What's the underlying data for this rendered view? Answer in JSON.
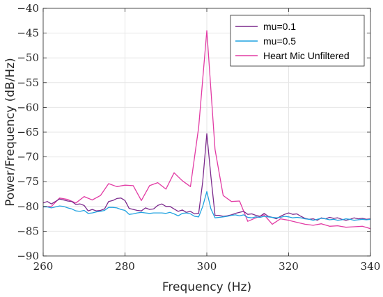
{
  "chart_data": {
    "type": "line",
    "title": "",
    "xlabel": "Frequency (Hz)",
    "ylabel": "Power/Frequency (dB/Hz)",
    "xlim": [
      260,
      340
    ],
    "ylim": [
      -90,
      -40
    ],
    "xticks": [
      260,
      280,
      300,
      320,
      340
    ],
    "xtick_labels": [
      "260",
      "280",
      "300",
      "320",
      "340"
    ],
    "yticks": [
      -40,
      -45,
      -50,
      -55,
      -60,
      -65,
      -70,
      -75,
      -80,
      -85,
      -90
    ],
    "ytick_labels": [
      "−40",
      "−45",
      "−50",
      "−55",
      "−60",
      "−65",
      "−70",
      "−75",
      "−80",
      "−85",
      "−90"
    ],
    "grid": true,
    "legend_position": "top-right",
    "series": [
      {
        "name": "mu=0.1",
        "color": "#7b2a8c",
        "x": [
          260,
          261,
          262,
          263,
          264,
          265,
          266,
          267,
          268,
          269,
          270,
          271,
          272,
          273,
          274,
          275,
          276,
          277,
          278,
          279,
          280,
          281,
          282,
          283,
          284,
          285,
          286,
          287,
          288,
          289,
          290,
          291,
          292,
          293,
          294,
          295,
          296,
          297,
          298,
          299,
          300,
          301,
          302,
          303,
          304,
          305,
          306,
          307,
          308,
          309,
          310,
          311,
          312,
          313,
          314,
          315,
          316,
          317,
          318,
          319,
          320,
          321,
          322,
          323,
          324,
          325,
          326,
          327,
          328,
          329,
          330,
          331,
          332,
          333,
          334,
          335,
          336,
          337,
          338,
          339,
          340
        ],
        "y": [
          -79.3,
          -79.0,
          -79.5,
          -79.0,
          -78.5,
          -78.7,
          -78.9,
          -79.0,
          -79.6,
          -79.5,
          -79.8,
          -80.9,
          -80.6,
          -80.9,
          -80.8,
          -80.5,
          -79.0,
          -78.8,
          -78.4,
          -78.3,
          -78.8,
          -80.4,
          -80.6,
          -80.8,
          -80.9,
          -80.3,
          -80.6,
          -80.5,
          -79.8,
          -79.5,
          -80.0,
          -80.0,
          -80.5,
          -81.0,
          -80.7,
          -81.2,
          -81.0,
          -81.5,
          -81.4,
          -75.0,
          -65.3,
          -74.0,
          -81.8,
          -81.8,
          -82.0,
          -81.9,
          -81.7,
          -81.4,
          -81.2,
          -81.0,
          -81.6,
          -81.5,
          -81.8,
          -82.0,
          -81.4,
          -82.0,
          -82.2,
          -82.5,
          -82.0,
          -81.6,
          -81.3,
          -81.6,
          -81.5,
          -82.0,
          -82.4,
          -82.6,
          -82.5,
          -82.8,
          -82.3,
          -82.5,
          -82.2,
          -82.4,
          -82.3,
          -82.6,
          -82.8,
          -82.6,
          -82.3,
          -82.5,
          -82.4,
          -82.6,
          -82.5
        ]
      },
      {
        "name": "mu=0.5",
        "color": "#1fa2e0",
        "x": [
          260,
          261,
          262,
          263,
          264,
          265,
          266,
          267,
          268,
          269,
          270,
          271,
          272,
          273,
          274,
          275,
          276,
          277,
          278,
          279,
          280,
          281,
          282,
          283,
          284,
          285,
          286,
          287,
          288,
          289,
          290,
          291,
          292,
          293,
          294,
          295,
          296,
          297,
          298,
          299,
          300,
          301,
          302,
          303,
          304,
          305,
          306,
          307,
          308,
          309,
          310,
          311,
          312,
          313,
          314,
          315,
          316,
          317,
          318,
          319,
          320,
          321,
          322,
          323,
          324,
          325,
          326,
          327,
          328,
          329,
          330,
          331,
          332,
          333,
          334,
          335,
          336,
          337,
          338,
          339,
          340
        ],
        "y": [
          -80.1,
          -80.1,
          -80.3,
          -80.1,
          -79.9,
          -80.0,
          -80.3,
          -80.5,
          -80.9,
          -81.0,
          -80.8,
          -81.4,
          -81.3,
          -81.1,
          -81.0,
          -80.8,
          -80.2,
          -80.2,
          -80.3,
          -80.6,
          -80.8,
          -81.6,
          -81.5,
          -81.3,
          -81.2,
          -81.3,
          -81.4,
          -81.3,
          -81.3,
          -81.3,
          -81.4,
          -81.2,
          -81.5,
          -81.9,
          -81.4,
          -81.3,
          -81.5,
          -82.0,
          -82.1,
          -80.0,
          -77.0,
          -80.5,
          -82.3,
          -82.2,
          -82.1,
          -82.0,
          -81.8,
          -81.7,
          -81.9,
          -81.7,
          -82.2,
          -82.3,
          -82.1,
          -82.2,
          -82.0,
          -82.1,
          -82.2,
          -82.3,
          -82.2,
          -82.0,
          -82.1,
          -82.3,
          -82.2,
          -82.3,
          -82.5,
          -82.6,
          -82.8,
          -82.6,
          -82.4,
          -82.5,
          -82.7,
          -82.6,
          -82.8,
          -82.7,
          -82.5,
          -82.6,
          -82.8,
          -82.7,
          -82.6,
          -82.7,
          -82.6
        ]
      },
      {
        "name": "Heart Mic Unfiltered",
        "color": "#e23ba4",
        "x": [
          260,
          262,
          264,
          266,
          268,
          270,
          272,
          274,
          276,
          278,
          280,
          282,
          284,
          286,
          288,
          290,
          292,
          294,
          296,
          298,
          300,
          302,
          304,
          306,
          308,
          310,
          312,
          314,
          316,
          318,
          320,
          322,
          324,
          326,
          328,
          330,
          332,
          334,
          336,
          338,
          340
        ],
        "y": [
          -80.1,
          -80.0,
          -78.3,
          -78.6,
          -79.3,
          -78.0,
          -78.7,
          -77.8,
          -75.4,
          -76.0,
          -75.7,
          -75.8,
          -78.8,
          -75.8,
          -75.2,
          -76.5,
          -73.2,
          -74.8,
          -76.0,
          -64.0,
          -44.5,
          -68.5,
          -77.8,
          -79.0,
          -78.9,
          -83.0,
          -82.3,
          -81.7,
          -83.6,
          -82.5,
          -82.8,
          -83.2,
          -83.6,
          -83.8,
          -83.5,
          -84.0,
          -83.9,
          -84.2,
          -84.1,
          -84.0,
          -84.5
        ]
      }
    ]
  }
}
